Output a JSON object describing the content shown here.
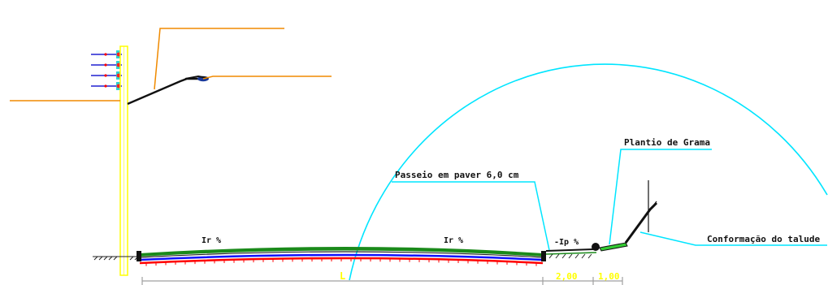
{
  "labels": {
    "poste": "",
    "braco": "",
    "luminaria": "",
    "slope_left": "Ir %",
    "slope_right": "Ir %",
    "slope_sidewalk": "-Ip %",
    "passeio": "Passeio em paver 6,0 cm",
    "grama": "Plantio de Grama",
    "talude": "Conformação do talude"
  },
  "dimensions": {
    "lane_width": "L",
    "sidewalk_width": "2,00",
    "grass_width": "1,00"
  },
  "colors": {
    "leader": "#f08a00",
    "callout": "#00e5ff",
    "pole": "#ffff00",
    "asphalt": "#1a8a1a",
    "base_red": "#ff0000",
    "base_blue": "#1010ff",
    "grass": "#33cc33",
    "dimension_text": "#ffff00",
    "dimension_line": "#a0a0a0"
  }
}
